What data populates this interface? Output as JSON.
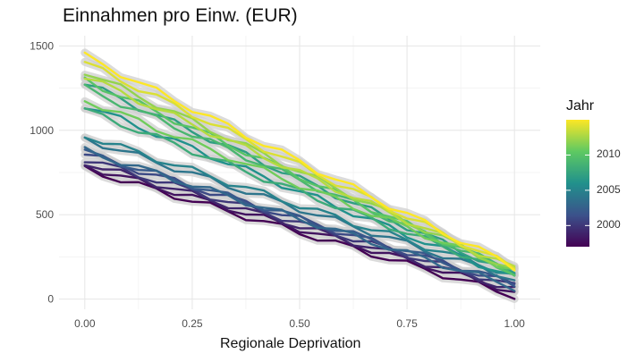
{
  "chart_data": {
    "type": "line",
    "title": "Einnahmen pro Einw. (EUR)",
    "xlabel": "Regionale Deprivation",
    "ylabel": "",
    "xlim": [
      -0.06,
      1.06
    ],
    "ylim": [
      -60,
      1560
    ],
    "x_ticks": [
      {
        "value": 0.0,
        "label": "0.00"
      },
      {
        "value": 0.25,
        "label": "0.25"
      },
      {
        "value": 0.5,
        "label": "0.50"
      },
      {
        "value": 0.75,
        "label": "0.75"
      },
      {
        "value": 1.0,
        "label": "1.00"
      }
    ],
    "y_ticks": [
      {
        "value": 0,
        "label": "0"
      },
      {
        "value": 500,
        "label": "500"
      },
      {
        "value": 1000,
        "label": "1000"
      },
      {
        "value": 1500,
        "label": "1500"
      }
    ],
    "grid": true,
    "confidence_band": true,
    "legend": {
      "title": "Jahr",
      "position": "right",
      "range": [
        1997,
        2015
      ],
      "ticks": [
        {
          "value": 2000,
          "label": "2000"
        },
        {
          "value": 2005,
          "label": "2005"
        },
        {
          "value": 2010,
          "label": "2010"
        }
      ],
      "colormap": [
        "#440154",
        "#3b528b",
        "#21918c",
        "#5ec962",
        "#fde725"
      ]
    },
    "series": [
      {
        "year": 1997,
        "y_start": 770,
        "y_end": 20
      },
      {
        "year": 1998,
        "y_start": 790,
        "y_end": 45
      },
      {
        "year": 1999,
        "y_start": 810,
        "y_end": 55
      },
      {
        "year": 2000,
        "y_start": 830,
        "y_end": 75
      },
      {
        "year": 2001,
        "y_start": 860,
        "y_end": 85
      },
      {
        "year": 2002,
        "y_start": 870,
        "y_end": 90
      },
      {
        "year": 2003,
        "y_start": 880,
        "y_end": 70
      },
      {
        "year": 2004,
        "y_start": 950,
        "y_end": 120
      },
      {
        "year": 2005,
        "y_start": 970,
        "y_end": 140
      },
      {
        "year": 2006,
        "y_start": 1150,
        "y_end": 125
      },
      {
        "year": 2007,
        "y_start": 1280,
        "y_end": 145
      },
      {
        "year": 2008,
        "y_start": 1120,
        "y_end": 150
      },
      {
        "year": 2009,
        "y_start": 1250,
        "y_end": 160
      },
      {
        "year": 2010,
        "y_start": 1300,
        "y_end": 155
      },
      {
        "year": 2011,
        "y_start": 1180,
        "y_end": 170
      },
      {
        "year": 2012,
        "y_start": 1350,
        "y_end": 165
      },
      {
        "year": 2013,
        "y_start": 1320,
        "y_end": 180
      },
      {
        "year": 2014,
        "y_start": 1400,
        "y_end": 185
      },
      {
        "year": 2015,
        "y_start": 1440,
        "y_end": 190
      }
    ]
  }
}
